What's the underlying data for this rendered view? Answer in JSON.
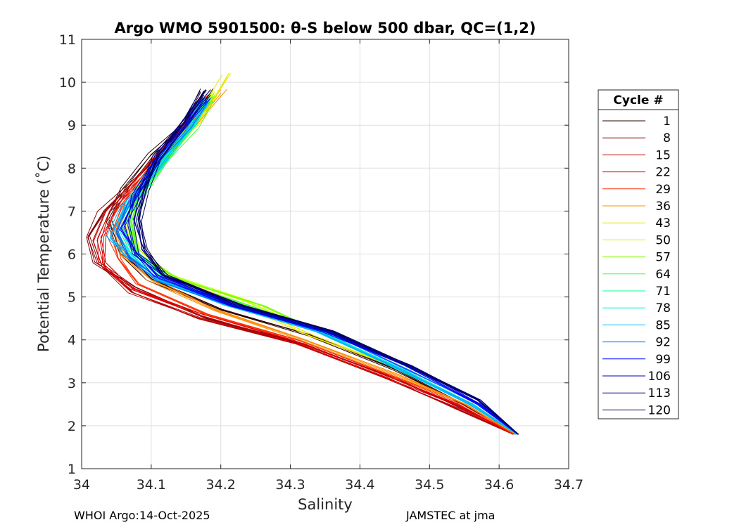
{
  "chart_data": {
    "type": "line",
    "title": "Argo WMO 5901500: θ-S below 500 dbar,  QC=(1,2)",
    "xlabel": "Salinity",
    "ylabel": "Potential Temperature (˚C)",
    "xlim": [
      34,
      34.7
    ],
    "ylim": [
      1,
      11
    ],
    "xticks": [
      34,
      34.1,
      34.2,
      34.3,
      34.4,
      34.5,
      34.6,
      34.7
    ],
    "xtick_labels": [
      "34",
      "34.1",
      "34.2",
      "34.3",
      "34.4",
      "34.5",
      "34.6",
      "34.7"
    ],
    "yticks": [
      1,
      2,
      3,
      4,
      5,
      6,
      7,
      8,
      9,
      10,
      11
    ],
    "ytick_labels": [
      "1",
      "2",
      "3",
      "4",
      "5",
      "6",
      "7",
      "8",
      "9",
      "10",
      "11"
    ],
    "grid": true,
    "legend_title": "Cycle #",
    "legend_position": "outside-right",
    "series": [
      {
        "name": "1",
        "color": "#2a0000",
        "profile": [
          [
            34.627,
            1.8
          ],
          [
            34.55,
            2.5
          ],
          [
            34.45,
            3.3
          ],
          [
            34.33,
            4.1
          ],
          [
            34.2,
            4.7
          ],
          [
            34.1,
            5.4
          ],
          [
            34.06,
            6.0
          ],
          [
            34.04,
            6.8
          ],
          [
            34.06,
            7.5
          ],
          [
            34.1,
            8.3
          ],
          [
            34.15,
            9.0
          ],
          [
            34.18,
            9.8
          ]
        ]
      },
      {
        "name": "8",
        "color": "#800000",
        "profile": [
          [
            34.623,
            1.8
          ],
          [
            34.55,
            2.4
          ],
          [
            34.45,
            3.1
          ],
          [
            34.32,
            3.9
          ],
          [
            34.18,
            4.5
          ],
          [
            34.08,
            5.2
          ],
          [
            34.02,
            5.8
          ],
          [
            34.01,
            6.4
          ],
          [
            34.03,
            7.0
          ],
          [
            34.08,
            7.8
          ],
          [
            34.13,
            8.7
          ],
          [
            34.18,
            9.6
          ]
        ]
      },
      {
        "name": "15",
        "color": "#b40000",
        "profile": [
          [
            34.62,
            1.8
          ],
          [
            34.54,
            2.4
          ],
          [
            34.44,
            3.1
          ],
          [
            34.31,
            3.9
          ],
          [
            34.17,
            4.5
          ],
          [
            34.07,
            5.1
          ],
          [
            34.03,
            5.7
          ],
          [
            34.02,
            6.3
          ],
          [
            34.04,
            7.0
          ],
          [
            34.09,
            7.9
          ],
          [
            34.14,
            8.8
          ],
          [
            34.18,
            9.6
          ]
        ]
      },
      {
        "name": "22",
        "color": "#e00000",
        "profile": [
          [
            34.62,
            1.8
          ],
          [
            34.54,
            2.5
          ],
          [
            34.43,
            3.2
          ],
          [
            34.3,
            4.0
          ],
          [
            34.17,
            4.6
          ],
          [
            34.07,
            5.2
          ],
          [
            34.03,
            5.8
          ],
          [
            34.03,
            6.4
          ],
          [
            34.05,
            7.1
          ],
          [
            34.1,
            8.0
          ],
          [
            34.15,
            8.9
          ],
          [
            34.18,
            9.6
          ]
        ]
      },
      {
        "name": "29",
        "color": "#ff3000",
        "profile": [
          [
            34.621,
            1.8
          ],
          [
            34.55,
            2.5
          ],
          [
            34.44,
            3.2
          ],
          [
            34.31,
            4.0
          ],
          [
            34.18,
            4.6
          ],
          [
            34.08,
            5.3
          ],
          [
            34.05,
            5.9
          ],
          [
            34.04,
            6.5
          ],
          [
            34.06,
            7.2
          ],
          [
            34.1,
            8.1
          ],
          [
            34.15,
            8.9
          ],
          [
            34.19,
            9.7
          ]
        ]
      },
      {
        "name": "36",
        "color": "#ff8c00",
        "profile": [
          [
            34.624,
            1.8
          ],
          [
            34.55,
            2.5
          ],
          [
            34.45,
            3.2
          ],
          [
            34.32,
            4.0
          ],
          [
            34.19,
            4.7
          ],
          [
            34.1,
            5.4
          ],
          [
            34.06,
            6.0
          ],
          [
            34.05,
            6.6
          ],
          [
            34.07,
            7.3
          ],
          [
            34.11,
            8.2
          ],
          [
            34.16,
            9.0
          ],
          [
            34.2,
            9.8
          ]
        ]
      },
      {
        "name": "43",
        "color": "#e6e600",
        "profile": [
          [
            34.625,
            1.8
          ],
          [
            34.56,
            2.5
          ],
          [
            34.46,
            3.3
          ],
          [
            34.33,
            4.1
          ],
          [
            34.22,
            4.9
          ],
          [
            34.12,
            5.5
          ],
          [
            34.07,
            6.1
          ],
          [
            34.06,
            6.7
          ],
          [
            34.08,
            7.4
          ],
          [
            34.12,
            8.3
          ],
          [
            34.17,
            9.2
          ],
          [
            34.21,
            10.2
          ]
        ]
      },
      {
        "name": "50",
        "color": "#c8ff00",
        "profile": [
          [
            34.625,
            1.8
          ],
          [
            34.56,
            2.5
          ],
          [
            34.46,
            3.3
          ],
          [
            34.34,
            4.2
          ],
          [
            34.24,
            4.9
          ],
          [
            34.13,
            5.5
          ],
          [
            34.08,
            6.1
          ],
          [
            34.07,
            6.7
          ],
          [
            34.08,
            7.4
          ],
          [
            34.12,
            8.3
          ],
          [
            34.16,
            9.1
          ],
          [
            34.19,
            9.8
          ]
        ]
      },
      {
        "name": "57",
        "color": "#80ff00",
        "profile": [
          [
            34.625,
            1.8
          ],
          [
            34.56,
            2.5
          ],
          [
            34.46,
            3.3
          ],
          [
            34.34,
            4.2
          ],
          [
            34.26,
            4.8
          ],
          [
            34.14,
            5.4
          ],
          [
            34.08,
            6.0
          ],
          [
            34.07,
            6.6
          ],
          [
            34.08,
            7.3
          ],
          [
            34.12,
            8.2
          ],
          [
            34.16,
            9.0
          ],
          [
            34.19,
            9.7
          ]
        ]
      },
      {
        "name": "64",
        "color": "#40ff40",
        "profile": [
          [
            34.625,
            1.8
          ],
          [
            34.56,
            2.5
          ],
          [
            34.46,
            3.3
          ],
          [
            34.34,
            4.2
          ],
          [
            34.24,
            4.8
          ],
          [
            34.13,
            5.4
          ],
          [
            34.08,
            6.0
          ],
          [
            34.07,
            6.6
          ],
          [
            34.08,
            7.3
          ],
          [
            34.12,
            8.2
          ],
          [
            34.16,
            9.0
          ],
          [
            34.18,
            9.6
          ]
        ]
      },
      {
        "name": "71",
        "color": "#00ff99",
        "profile": [
          [
            34.626,
            1.8
          ],
          [
            34.56,
            2.5
          ],
          [
            34.46,
            3.3
          ],
          [
            34.34,
            4.2
          ],
          [
            34.22,
            4.8
          ],
          [
            34.12,
            5.4
          ],
          [
            34.08,
            6.0
          ],
          [
            34.06,
            6.6
          ],
          [
            34.08,
            7.3
          ],
          [
            34.12,
            8.2
          ],
          [
            34.16,
            9.0
          ],
          [
            34.18,
            9.6
          ]
        ]
      },
      {
        "name": "78",
        "color": "#00e6e6",
        "profile": [
          [
            34.626,
            1.8
          ],
          [
            34.56,
            2.5
          ],
          [
            34.46,
            3.3
          ],
          [
            34.34,
            4.2
          ],
          [
            34.21,
            4.8
          ],
          [
            34.11,
            5.4
          ],
          [
            34.07,
            6.0
          ],
          [
            34.05,
            6.6
          ],
          [
            34.07,
            7.3
          ],
          [
            34.11,
            8.2
          ],
          [
            34.16,
            9.0
          ],
          [
            34.18,
            9.6
          ]
        ]
      },
      {
        "name": "85",
        "color": "#00b4ff",
        "profile": [
          [
            34.626,
            1.8
          ],
          [
            34.56,
            2.5
          ],
          [
            34.46,
            3.3
          ],
          [
            34.34,
            4.2
          ],
          [
            34.21,
            4.8
          ],
          [
            34.11,
            5.4
          ],
          [
            34.07,
            5.9
          ],
          [
            34.04,
            6.4
          ],
          [
            34.06,
            7.1
          ],
          [
            34.11,
            8.0
          ],
          [
            34.15,
            8.9
          ],
          [
            34.18,
            9.6
          ]
        ]
      },
      {
        "name": "92",
        "color": "#0064ff",
        "profile": [
          [
            34.627,
            1.8
          ],
          [
            34.57,
            2.5
          ],
          [
            34.47,
            3.3
          ],
          [
            34.35,
            4.2
          ],
          [
            34.22,
            4.8
          ],
          [
            34.11,
            5.4
          ],
          [
            34.07,
            5.9
          ],
          [
            34.05,
            6.5
          ],
          [
            34.07,
            7.2
          ],
          [
            34.11,
            8.1
          ],
          [
            34.15,
            8.9
          ],
          [
            34.18,
            9.6
          ]
        ]
      },
      {
        "name": "99",
        "color": "#0000ff",
        "profile": [
          [
            34.627,
            1.8
          ],
          [
            34.57,
            2.5
          ],
          [
            34.47,
            3.4
          ],
          [
            34.35,
            4.2
          ],
          [
            34.22,
            4.8
          ],
          [
            34.11,
            5.5
          ],
          [
            34.08,
            6.0
          ],
          [
            34.06,
            6.6
          ],
          [
            34.08,
            7.3
          ],
          [
            34.11,
            8.2
          ],
          [
            34.15,
            9.0
          ],
          [
            34.18,
            9.6
          ]
        ]
      },
      {
        "name": "106",
        "color": "#0000c0",
        "profile": [
          [
            34.627,
            1.8
          ],
          [
            34.57,
            2.6
          ],
          [
            34.47,
            3.4
          ],
          [
            34.35,
            4.2
          ],
          [
            34.22,
            4.8
          ],
          [
            34.12,
            5.5
          ],
          [
            34.08,
            6.0
          ],
          [
            34.07,
            6.7
          ],
          [
            34.08,
            7.4
          ],
          [
            34.11,
            8.2
          ],
          [
            34.15,
            9.0
          ],
          [
            34.18,
            9.7
          ]
        ]
      },
      {
        "name": "113",
        "color": "#000080",
        "profile": [
          [
            34.628,
            1.8
          ],
          [
            34.57,
            2.6
          ],
          [
            34.47,
            3.4
          ],
          [
            34.36,
            4.2
          ],
          [
            34.23,
            4.8
          ],
          [
            34.12,
            5.5
          ],
          [
            34.09,
            6.1
          ],
          [
            34.08,
            6.8
          ],
          [
            34.09,
            7.5
          ],
          [
            34.11,
            8.3
          ],
          [
            34.15,
            9.1
          ],
          [
            34.18,
            9.8
          ]
        ]
      },
      {
        "name": "120",
        "color": "#000060",
        "profile": [
          [
            34.628,
            1.8
          ],
          [
            34.57,
            2.6
          ],
          [
            34.47,
            3.4
          ],
          [
            34.36,
            4.2
          ],
          [
            34.23,
            4.8
          ],
          [
            34.12,
            5.5
          ],
          [
            34.09,
            6.1
          ],
          [
            34.08,
            6.8
          ],
          [
            34.09,
            7.5
          ],
          [
            34.11,
            8.3
          ],
          [
            34.15,
            9.1
          ],
          [
            34.18,
            9.8
          ]
        ]
      }
    ]
  },
  "footer": {
    "left": "WHOI Argo:14-Oct-2025",
    "right": "JAMSTEC at jma"
  }
}
